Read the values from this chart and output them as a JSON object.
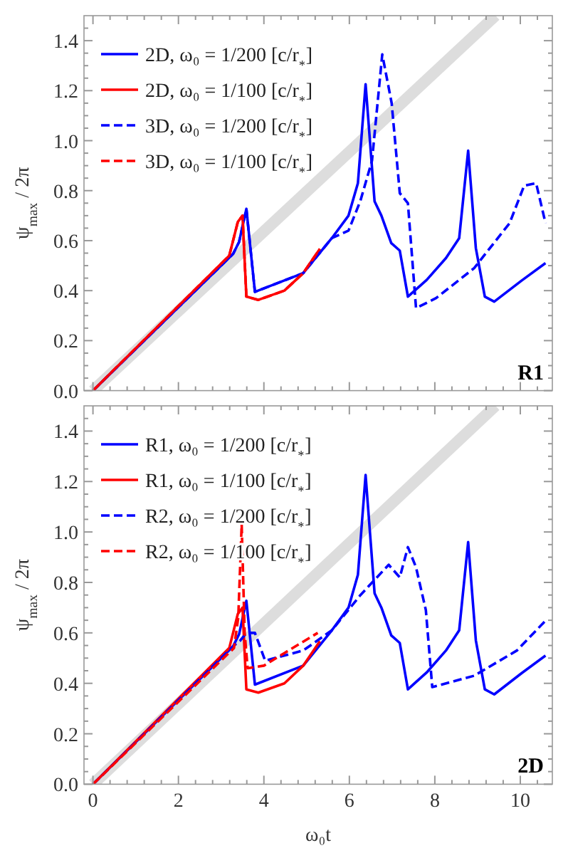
{
  "chart_data": [
    {
      "type": "line",
      "ylabel": "ψ$_{max}$ / 2π",
      "xlim": [
        -0.21,
        10.75
      ],
      "ylim": [
        0,
        1.5
      ],
      "tick_labels": "y",
      "grid": false,
      "legend": "top left",
      "annotations": [
        "R1"
      ],
      "xticks": [
        0,
        {
          "value": 0.4,
          "label": null
        },
        {
          "value": 0.8,
          "label": null
        },
        {
          "value": 1.2,
          "label": null
        },
        {
          "value": 1.6,
          "label": null
        },
        2,
        {
          "value": 2.4,
          "label": null
        },
        {
          "value": 2.8,
          "label": null
        },
        {
          "value": 3.2,
          "label": null
        },
        {
          "value": 3.6,
          "label": null
        },
        4,
        {
          "value": 4.4,
          "label": null
        },
        {
          "value": 4.8,
          "label": null
        },
        {
          "value": 5.2,
          "label": null
        },
        {
          "value": 5.6,
          "label": null
        },
        6,
        {
          "value": 6.4,
          "label": null
        },
        {
          "value": 6.8,
          "label": null
        },
        {
          "value": 7.2,
          "label": null
        },
        {
          "value": 7.6,
          "label": null
        },
        8,
        {
          "value": 8.4,
          "label": null
        },
        {
          "value": 8.8,
          "label": null
        },
        {
          "value": 9.2,
          "label": null
        },
        {
          "value": 9.6,
          "label": null
        },
        10,
        {
          "value": 10.4,
          "label": null
        }
      ],
      "yticks": [
        {
          "value": 0,
          "label": "0.0"
        },
        {
          "value": 0.05,
          "label": null
        },
        {
          "value": 0.1,
          "label": null
        },
        {
          "value": 0.15,
          "label": null
        },
        0.2,
        {
          "value": 0.25,
          "label": null
        },
        {
          "value": 0.3,
          "label": null
        },
        {
          "value": 0.35,
          "label": null
        },
        0.4,
        {
          "value": 0.45,
          "label": null
        },
        {
          "value": 0.5,
          "label": null
        },
        {
          "value": 0.55,
          "label": null
        },
        0.6,
        {
          "value": 0.65,
          "label": null
        },
        {
          "value": 0.7,
          "label": null
        },
        {
          "value": 0.75,
          "label": null
        },
        0.8,
        {
          "value": 0.85,
          "label": null
        },
        {
          "value": 0.9,
          "label": null
        },
        {
          "value": 0.95,
          "label": null
        },
        {
          "value": 1,
          "label": "1.0"
        },
        {
          "value": 1.05,
          "label": null
        },
        {
          "value": 1.1,
          "label": null
        },
        {
          "value": 1.15,
          "label": null
        },
        1.2,
        {
          "value": 1.25,
          "label": null
        },
        {
          "value": 1.3,
          "label": null
        },
        {
          "value": 1.35,
          "label": null
        },
        1.4,
        {
          "value": 1.45,
          "label": null
        }
      ],
      "series": [
        {
          "color": "#dddddd",
          "x": [
            0,
            9.42
          ],
          "values": [
            0,
            1.5
          ],
          "line_style": "solid"
        },
        {
          "name": "2D, ω₀ = 1/200 [c/r$_{*}$]",
          "color": "#0000ff",
          "line_style": "solid",
          "x": [
            0,
            3.28,
            3.42,
            3.59,
            3.79,
            4.92,
            5.59,
            5.98,
            6.2,
            6.38,
            6.59,
            6.75,
            6.98,
            7.18,
            7.37,
            7.81,
            8.26,
            8.57,
            8.78,
            8.96,
            9.17,
            9.39,
            10.03,
            10.59
          ],
          "values": [
            0,
            0.547,
            0.595,
            0.727,
            0.395,
            0.47,
            0.61,
            0.7,
            0.83,
            1.226,
            0.757,
            0.7,
            0.59,
            0.56,
            0.376,
            0.443,
            0.53,
            0.61,
            0.96,
            0.57,
            0.376,
            0.356,
            0.44,
            0.51
          ]
        },
        {
          "name": "2D, ω₀ = 1/100 [c/r$_{*}$]",
          "color": "#ff0000",
          "line_style": "solid",
          "x": [
            0,
            3.19,
            3.39,
            3.5,
            3.59,
            3.87,
            4.48,
            4.92,
            5.31
          ],
          "values": [
            0,
            0.54,
            0.675,
            0.7,
            0.376,
            0.363,
            0.4,
            0.47,
            0.567
          ]
        },
        {
          "name": "3D, ω₀ = 1/200 [c/r$_{*}$]",
          "color": "#0000ff",
          "line_style": "dashed",
          "x": [
            0,
            3.28,
            3.42,
            3.59,
            3.79,
            4.92,
            5.59,
            5.98,
            6.26,
            6.53,
            6.77,
            6.99,
            7.18,
            7.37,
            7.56,
            8.03,
            8.92,
            9.75,
            10.09,
            10.37,
            10.59
          ],
          "values": [
            0,
            0.547,
            0.595,
            0.727,
            0.395,
            0.47,
            0.61,
            0.64,
            0.76,
            0.92,
            1.345,
            1.15,
            0.79,
            0.75,
            0.33,
            0.37,
            0.49,
            0.67,
            0.82,
            0.83,
            0.67
          ]
        },
        {
          "name": "3D, ω₀ = 1/100 [c/r$_{*}$]",
          "color": "#ff0000",
          "line_style": "dashed",
          "x": [
            0,
            3.19,
            3.39,
            3.5,
            3.59,
            3.87,
            4.48,
            4.92,
            5.31
          ],
          "values": [
            0,
            0.54,
            0.675,
            0.7,
            0.376,
            0.363,
            0.4,
            0.47,
            0.567
          ]
        }
      ]
    },
    {
      "type": "line",
      "xlabel": "ω₀t",
      "ylabel": "ψ$_{max}$ / 2π",
      "xlim": [
        -0.21,
        10.75
      ],
      "ylim": [
        0,
        1.5
      ],
      "grid": false,
      "legend": "top left",
      "annotations": [
        "2D"
      ],
      "xticks": [
        0,
        {
          "value": 0.4,
          "label": null
        },
        {
          "value": 0.8,
          "label": null
        },
        {
          "value": 1.2,
          "label": null
        },
        {
          "value": 1.6,
          "label": null
        },
        2,
        {
          "value": 2.4,
          "label": null
        },
        {
          "value": 2.8,
          "label": null
        },
        {
          "value": 3.2,
          "label": null
        },
        {
          "value": 3.6,
          "label": null
        },
        4,
        {
          "value": 4.4,
          "label": null
        },
        {
          "value": 4.8,
          "label": null
        },
        {
          "value": 5.2,
          "label": null
        },
        {
          "value": 5.6,
          "label": null
        },
        6,
        {
          "value": 6.4,
          "label": null
        },
        {
          "value": 6.8,
          "label": null
        },
        {
          "value": 7.2,
          "label": null
        },
        {
          "value": 7.6,
          "label": null
        },
        8,
        {
          "value": 8.4,
          "label": null
        },
        {
          "value": 8.8,
          "label": null
        },
        {
          "value": 9.2,
          "label": null
        },
        {
          "value": 9.6,
          "label": null
        },
        10,
        {
          "value": 10.4,
          "label": null
        }
      ],
      "yticks": [
        {
          "value": 0,
          "label": "0.0"
        },
        {
          "value": 0.05,
          "label": null
        },
        {
          "value": 0.1,
          "label": null
        },
        {
          "value": 0.15,
          "label": null
        },
        0.2,
        {
          "value": 0.25,
          "label": null
        },
        {
          "value": 0.3,
          "label": null
        },
        {
          "value": 0.35,
          "label": null
        },
        0.4,
        {
          "value": 0.45,
          "label": null
        },
        {
          "value": 0.5,
          "label": null
        },
        {
          "value": 0.55,
          "label": null
        },
        0.6,
        {
          "value": 0.65,
          "label": null
        },
        {
          "value": 0.7,
          "label": null
        },
        {
          "value": 0.75,
          "label": null
        },
        0.8,
        {
          "value": 0.85,
          "label": null
        },
        {
          "value": 0.9,
          "label": null
        },
        {
          "value": 0.95,
          "label": null
        },
        {
          "value": 1,
          "label": "1.0"
        },
        {
          "value": 1.05,
          "label": null
        },
        {
          "value": 1.1,
          "label": null
        },
        {
          "value": 1.15,
          "label": null
        },
        1.2,
        {
          "value": 1.25,
          "label": null
        },
        {
          "value": 1.3,
          "label": null
        },
        {
          "value": 1.35,
          "label": null
        },
        1.4,
        {
          "value": 1.45,
          "label": null
        }
      ],
      "series": [
        {
          "color": "#dddddd",
          "x": [
            0,
            9.42
          ],
          "values": [
            0,
            1.5
          ],
          "line_style": "solid"
        },
        {
          "name": "R1, ω₀ = 1/200 [c/r$_{*}$]",
          "color": "#0000ff",
          "line_style": "solid",
          "x": [
            0,
            3.28,
            3.42,
            3.59,
            3.79,
            4.92,
            5.59,
            5.98,
            6.2,
            6.38,
            6.59,
            6.75,
            6.98,
            7.18,
            7.37,
            7.81,
            8.26,
            8.57,
            8.78,
            8.96,
            9.17,
            9.39,
            10.03,
            10.59
          ],
          "values": [
            0,
            0.547,
            0.595,
            0.727,
            0.395,
            0.47,
            0.61,
            0.7,
            0.83,
            1.226,
            0.757,
            0.7,
            0.59,
            0.56,
            0.376,
            0.443,
            0.53,
            0.61,
            0.96,
            0.57,
            0.376,
            0.356,
            0.44,
            0.51
          ]
        },
        {
          "name": "R1, ω₀ = 1/100 [c/r$_{*}$]",
          "color": "#ff0000",
          "line_style": "solid",
          "x": [
            0,
            3.19,
            3.39,
            3.5,
            3.59,
            3.87,
            4.48,
            4.92,
            5.31
          ],
          "values": [
            0,
            0.54,
            0.675,
            0.7,
            0.376,
            0.363,
            0.4,
            0.47,
            0.567
          ]
        },
        {
          "name": "R2, ω₀ = 1/200 [c/r$_{*}$]",
          "color": "#0000ff",
          "line_style": "dashed",
          "x": [
            0,
            3.3,
            3.45,
            3.59,
            3.79,
            4.03,
            4.92,
            5.59,
            6.26,
            6.92,
            7.18,
            7.37,
            7.56,
            7.79,
            7.94,
            8.92,
            9.92,
            10.6
          ],
          "values": [
            0,
            0.55,
            0.57,
            0.6,
            0.6,
            0.49,
            0.53,
            0.61,
            0.75,
            0.87,
            0.82,
            0.94,
            0.86,
            0.69,
            0.385,
            0.43,
            0.53,
            0.65
          ]
        },
        {
          "name": "R2, ω₀ = 1/100 [c/r$_{*}$]",
          "color": "#ff0000",
          "line_style": "dashed",
          "x": [
            0,
            3.3,
            3.4,
            3.48,
            3.55,
            3.62,
            4,
            4.48,
            5.26
          ],
          "values": [
            0,
            0.54,
            0.66,
            1.03,
            0.6,
            0.46,
            0.47,
            0.52,
            0.6
          ]
        }
      ]
    }
  ]
}
